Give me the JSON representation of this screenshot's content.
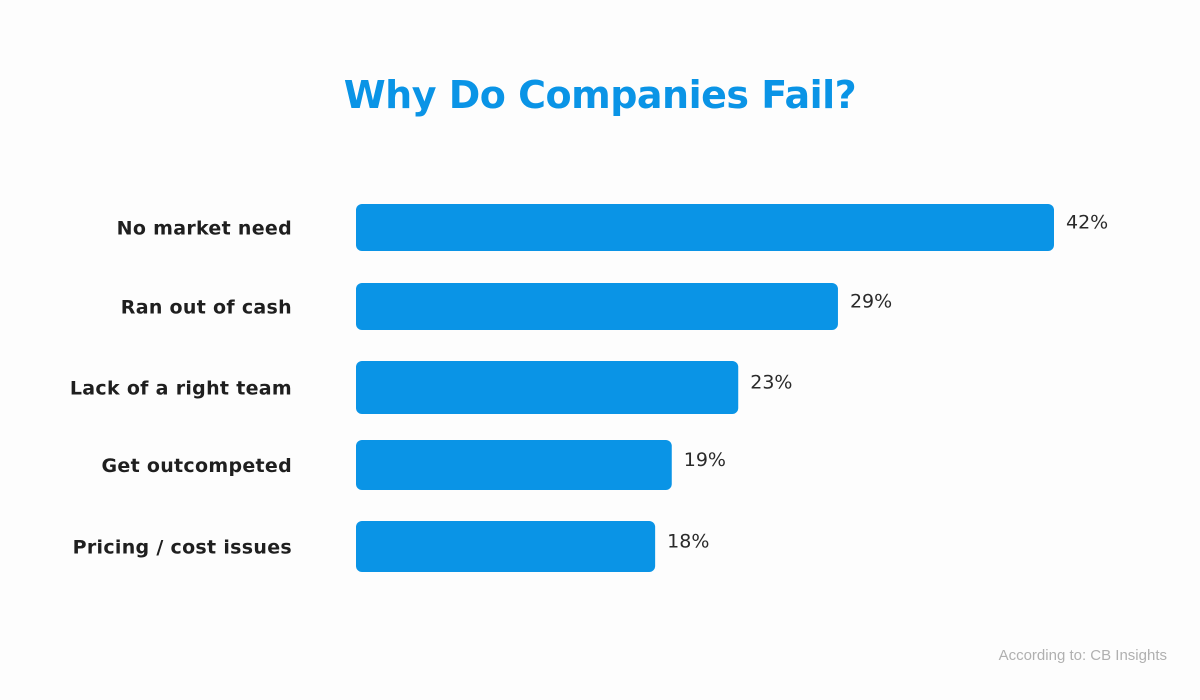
{
  "colors": {
    "bar": "#0a94e6",
    "title": "#0a94e6",
    "background": "#fdfdfd"
  },
  "chart_data": {
    "type": "bar",
    "orientation": "horizontal",
    "title": "Why Do Companies Fail?",
    "categories": [
      "No market need",
      "Ran out of cash",
      "Lack of a right team",
      "Get outcompeted",
      "Pricing / cost issues"
    ],
    "values": [
      42,
      29,
      23,
      19,
      18
    ],
    "value_labels": [
      "42%",
      "29%",
      "23%",
      "19%",
      "18%"
    ],
    "xlim": [
      0,
      42
    ],
    "grid": false,
    "legend": "none"
  },
  "source": "According to: CB Insights"
}
